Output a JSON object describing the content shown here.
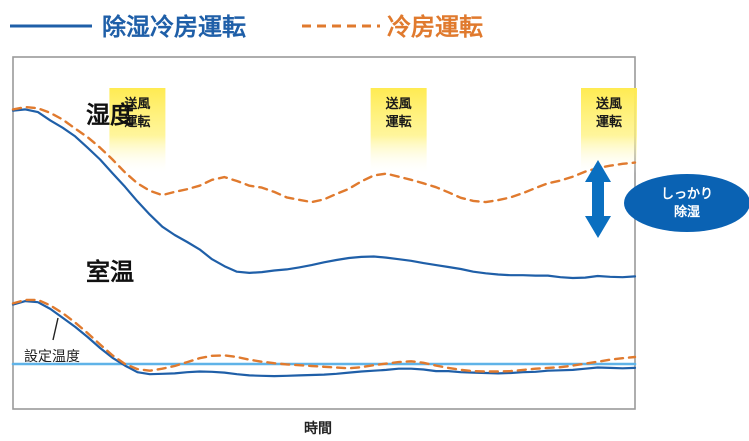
{
  "chart_data": {
    "type": "line",
    "xlabel": "時間",
    "x": [
      0,
      2,
      4,
      6,
      8,
      10,
      12,
      14,
      16,
      18,
      20,
      22,
      24,
      26,
      28,
      30,
      32,
      34,
      36,
      38,
      40,
      42,
      44,
      46,
      48,
      50,
      52,
      54,
      56,
      58,
      60,
      62,
      64,
      66,
      68,
      70,
      72,
      74,
      76,
      78,
      80,
      82,
      84,
      86,
      88,
      90,
      92,
      94,
      96,
      98,
      100
    ],
    "series": [
      {
        "name": "除湿冷房運転",
        "metric": "湿度",
        "values": [
          66.3,
          66.6,
          65.9,
          63.8,
          61.9,
          59.7,
          56.8,
          53.8,
          50.3,
          46.8,
          43.1,
          39.7,
          36.6,
          34.5,
          32.7,
          30.8,
          28.3,
          26.5,
          25.1,
          24.8,
          25.0,
          25.4,
          25.7,
          26.2,
          26.8,
          27.5,
          28.1,
          28.6,
          28.9,
          29.0,
          28.7,
          28.3,
          27.9,
          27.3,
          26.8,
          26.3,
          25.8,
          25.1,
          24.7,
          24.4,
          24.2,
          24.2,
          24.1,
          24.1,
          23.7,
          23.5,
          23.6,
          24.0,
          23.8,
          23.7,
          23.9
        ]
      },
      {
        "name": "冷房運転",
        "metric": "湿度",
        "values": [
          66.6,
          67.2,
          66.9,
          65.7,
          64.0,
          61.7,
          59.5,
          56.8,
          53.8,
          50.5,
          47.7,
          45.8,
          44.7,
          45.5,
          46.2,
          47.1,
          48.6,
          49.3,
          48.3,
          47.1,
          46.6,
          45.5,
          44.1,
          43.5,
          42.9,
          43.6,
          45.0,
          46.3,
          48.2,
          49.7,
          50.2,
          49.4,
          48.6,
          47.7,
          46.7,
          45.4,
          44.0,
          43.2,
          42.9,
          43.4,
          44.1,
          45.2,
          46.5,
          47.7,
          48.4,
          49.4,
          50.7,
          51.6,
          52.2,
          52.7,
          53.0
        ]
      },
      {
        "name": "除湿冷房運転",
        "metric": "室温",
        "values": [
          16.7,
          17.6,
          17.3,
          15.6,
          13.3,
          11.0,
          8.4,
          5.6,
          3.1,
          1.1,
          -0.6,
          -1.1,
          -1.0,
          -0.9,
          -0.6,
          -0.4,
          -0.5,
          -0.7,
          -1.1,
          -1.4,
          -1.5,
          -1.6,
          -1.5,
          -1.4,
          -1.3,
          -1.2,
          -1.0,
          -0.7,
          -0.4,
          -0.2,
          0.0,
          0.3,
          0.3,
          0.1,
          -0.3,
          -0.3,
          -0.6,
          -0.7,
          -0.8,
          -0.9,
          -0.8,
          -0.6,
          -0.5,
          -0.2,
          -0.1,
          0.0,
          0.3,
          0.6,
          0.5,
          0.4,
          0.5
        ]
      },
      {
        "name": "冷房運転",
        "metric": "室温",
        "values": [
          17.0,
          17.9,
          17.9,
          16.5,
          14.5,
          12.1,
          9.4,
          6.5,
          3.7,
          1.5,
          0.2,
          -0.2,
          0.3,
          1.0,
          2.0,
          3.0,
          3.6,
          3.7,
          3.3,
          2.6,
          2.1,
          1.7,
          1.4,
          1.2,
          1.0,
          0.8,
          0.6,
          0.4,
          0.7,
          1.2,
          1.6,
          2.0,
          2.2,
          1.8,
          1.1,
          0.5,
          0.0,
          -0.3,
          -0.4,
          -0.4,
          -0.3,
          0.0,
          0.3,
          0.5,
          0.7,
          1.1,
          1.6,
          2.1,
          2.6,
          3.0,
          3.3
        ]
      },
      {
        "name": "設定温度",
        "values": [
          1.5,
          1.5,
          1.5,
          1.5,
          1.5,
          1.5,
          1.5,
          1.5,
          1.5,
          1.5,
          1.5,
          1.5,
          1.5,
          1.5,
          1.5,
          1.5,
          1.5,
          1.5,
          1.5,
          1.5,
          1.5,
          1.5,
          1.5,
          1.5,
          1.5,
          1.5,
          1.5,
          1.5,
          1.5,
          1.5,
          1.5,
          1.5,
          1.5,
          1.5,
          1.5,
          1.5,
          1.5,
          1.5,
          1.5,
          1.5,
          1.5,
          1.5,
          1.5,
          1.5,
          1.5,
          1.5,
          1.5,
          1.5,
          1.5,
          1.5,
          1.5
        ]
      }
    ],
    "labels": {
      "humidity": "湿度",
      "room_temp": "室温",
      "setpoint": "設定温度"
    },
    "legend": [
      {
        "label": "除湿冷房運転",
        "style": "solid",
        "color": "#1f5fa8"
      },
      {
        "label": "冷房運転",
        "style": "dashed",
        "color": "#e07a2e"
      }
    ],
    "annotations": [
      {
        "text": [
          "送風",
          "運転"
        ],
        "x": 20
      },
      {
        "text": [
          "送風",
          "運転"
        ],
        "x": 62
      },
      {
        "text": [
          "送風",
          "運転"
        ],
        "x": 100
      }
    ],
    "callout": {
      "text": [
        "しっかり",
        "除湿"
      ],
      "x": 100
    },
    "grid": false,
    "xlim": [
      0,
      100
    ],
    "ylim": [
      -10,
      80
    ],
    "axes_visible": false
  },
  "colors": {
    "primary": "#1f5fa8",
    "secondary": "#e07a2e",
    "setpoint": "#5fb3e8",
    "badge": "#ffe74a",
    "frame": "#9a9a9a",
    "arrow": "#0a6fc0",
    "callout_bg": "#0a62b3"
  }
}
